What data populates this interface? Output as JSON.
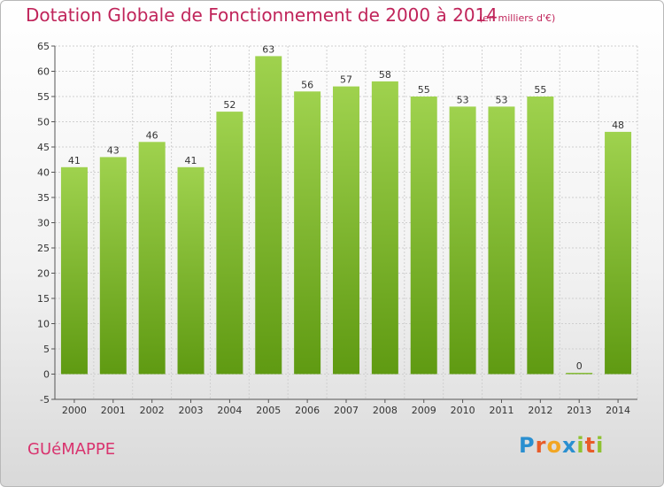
{
  "title": "Dotation Globale de Fonctionnement de 2000 à 2014",
  "unit": "(en milliers d'€)",
  "city": "GUéMAPPE",
  "logo": {
    "p": "P",
    "r": "r",
    "o": "o",
    "x": "x",
    "i1": "i",
    "t": "t",
    "i2": "i"
  },
  "colors": {
    "bar_top": "#9fd24e",
    "bar_bottom": "#5f9a12",
    "title": "#c0245a",
    "grid": "#cfcfcf"
  },
  "chart_data": {
    "type": "bar",
    "title": "Dotation Globale de Fonctionnement de 2000 à 2014",
    "xlabel": "",
    "ylabel": "",
    "categories": [
      "2000",
      "2001",
      "2002",
      "2003",
      "2004",
      "2005",
      "2006",
      "2007",
      "2008",
      "2009",
      "2010",
      "2011",
      "2012",
      "2013",
      "2014"
    ],
    "values": [
      41,
      43,
      46,
      41,
      52,
      63,
      56,
      57,
      58,
      55,
      53,
      53,
      55,
      0,
      48
    ],
    "ylim": [
      -5,
      65
    ],
    "yticks": [
      -5,
      0,
      5,
      10,
      15,
      20,
      25,
      30,
      35,
      40,
      45,
      50,
      55,
      60,
      65
    ],
    "grid": true
  }
}
